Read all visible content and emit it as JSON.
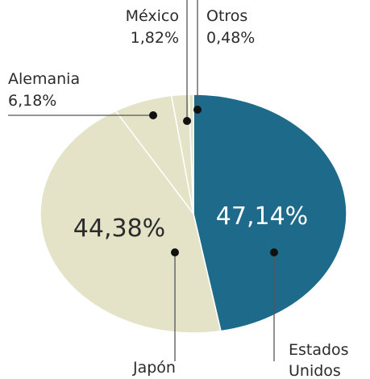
{
  "chart_data": {
    "type": "pie",
    "categories": [
      "Estados Unidos",
      "Japón",
      "Alemania",
      "México",
      "Otros"
    ],
    "values": [
      47.14,
      44.38,
      6.18,
      1.82,
      0.48
    ],
    "value_labels": [
      "47,14%",
      "44,38%",
      "6,18%",
      "1,82%",
      "0,48%"
    ],
    "colors": [
      "#1e6a8b",
      "#e4e3c8",
      "#e4e3c8",
      "#e4e3c8",
      "#e4e3c8"
    ]
  }
}
